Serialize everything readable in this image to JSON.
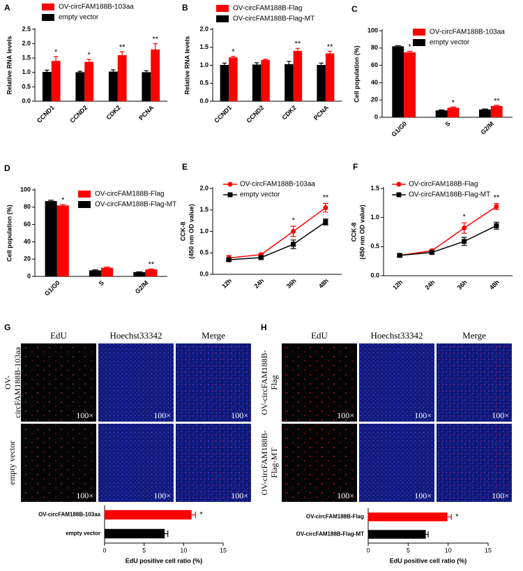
{
  "chart_data": [
    {
      "type": "bar",
      "panel": "A",
      "ylabel": "Relative RNA levels",
      "categories": [
        "CCND1",
        "CCND2",
        "CDK2",
        "PCNA"
      ],
      "series": [
        {
          "name": "OV-circFAM188B-103aa",
          "color": "#ff0000",
          "values": [
            1.4,
            1.37,
            1.6,
            1.8
          ],
          "errors": [
            0.15,
            0.08,
            0.12,
            0.2
          ],
          "annotations": [
            "*",
            "*",
            "**",
            "**"
          ]
        },
        {
          "name": "empty vector",
          "color": "#000000",
          "values": [
            1.02,
            1.01,
            1.03,
            1.01
          ],
          "errors": [
            0.06,
            0.03,
            0.06,
            0.05
          ]
        }
      ],
      "ylim": [
        0,
        2.5
      ],
      "yticks": [
        {
          "value": 0,
          "label": "0.0"
        },
        0.5,
        {
          "value": 1,
          "label": "1.0"
        },
        1.5,
        {
          "value": 2,
          "label": "2.0"
        },
        2.5
      ]
    },
    {
      "type": "bar",
      "panel": "B",
      "ylabel": "Relative RNA levels",
      "categories": [
        "CCND1",
        "CCND2",
        "CDK2",
        "PCNA"
      ],
      "series": [
        {
          "name": "OV-circFAM188B-Flag",
          "color": "#ff0000",
          "values": [
            1.22,
            1.15,
            1.4,
            1.33
          ],
          "errors": [
            0.03,
            0.02,
            0.07,
            0.06
          ],
          "annotations": [
            "*",
            null,
            "**",
            "**"
          ]
        },
        {
          "name": "OV-circFAM188B-Flag-MT",
          "color": "#000000",
          "values": [
            1.01,
            1.02,
            1.03,
            1.01
          ],
          "errors": [
            0.05,
            0.05,
            0.08,
            0.05
          ]
        }
      ],
      "ylim": [
        0,
        2.0
      ],
      "yticks": [
        {
          "value": 0,
          "label": "0.0"
        },
        0.5,
        {
          "value": 1,
          "label": "1.0"
        },
        1.5,
        {
          "value": 2,
          "label": "2.0"
        }
      ]
    },
    {
      "type": "bar",
      "panel": "C",
      "ylabel": "Cell population (%)",
      "categories": [
        "G1/G0",
        "S",
        "G2/M"
      ],
      "series": [
        {
          "name": "OV-circFAM188B-103aa",
          "color": "#ff0000",
          "values": [
            75,
            11,
            13
          ],
          "errors": [
            1.2,
            0.8,
            0.8
          ],
          "annotations": [
            "*",
            "*",
            "**"
          ]
        },
        {
          "name": "empty vector",
          "color": "#000000",
          "values": [
            82,
            8,
            9
          ],
          "errors": [
            0.8,
            0.5,
            0.6
          ]
        }
      ],
      "ylim": [
        0,
        100
      ],
      "yticks": [
        0,
        20,
        40,
        60,
        80,
        100
      ]
    },
    {
      "type": "bar",
      "panel": "D",
      "ylabel": "Cell population (%)",
      "categories": [
        "G1/G0",
        "S",
        "G2/M"
      ],
      "series": [
        {
          "name": "OV-circFAM188B-Flag",
          "color": "#ff0000",
          "values": [
            82,
            10,
            8
          ],
          "errors": [
            1.0,
            0.8,
            0.6
          ],
          "annotations": [
            "*",
            null,
            "**"
          ]
        },
        {
          "name": "OV-circFAM188B-Flag-MT",
          "color": "#000000",
          "values": [
            87,
            7,
            5
          ],
          "errors": [
            1.0,
            0.6,
            0.4
          ]
        }
      ],
      "ylim": [
        0,
        100
      ],
      "yticks": [
        0,
        20,
        40,
        60,
        80,
        100
      ]
    },
    {
      "type": "line",
      "panel": "E",
      "ylabel": [
        "CCK-8",
        "(450 nm OD value)"
      ],
      "categories": [
        "12h",
        "24h",
        "36h",
        "48h"
      ],
      "series": [
        {
          "name": "OV-circFAM188B-103aa",
          "color": "#ff0000",
          "marker": "circle",
          "values": [
            0.38,
            0.46,
            1.0,
            1.55
          ],
          "errors": [
            0.06,
            0.02,
            0.12,
            0.1
          ],
          "annotations": [
            null,
            null,
            "*",
            "**"
          ]
        },
        {
          "name": "empty vector",
          "color": "#000000",
          "marker": "square",
          "values": [
            0.34,
            0.39,
            0.7,
            1.22
          ],
          "errors": [
            0.03,
            0.03,
            0.1,
            0.07
          ]
        }
      ],
      "ylim": [
        0,
        2.0
      ],
      "yticks": [
        {
          "value": 0,
          "label": "0.0"
        },
        0.5,
        {
          "value": 1,
          "label": "1.0"
        },
        1.5,
        {
          "value": 2,
          "label": "2.0"
        }
      ]
    },
    {
      "type": "line",
      "panel": "F",
      "ylabel": [
        "CCK-8",
        "(450 nm OD value)"
      ],
      "categories": [
        "12h",
        "24h",
        "36h",
        "48h"
      ],
      "series": [
        {
          "name": "OV-circFAM188B-Flag",
          "color": "#ff0000",
          "marker": "circle",
          "values": [
            0.35,
            0.43,
            0.82,
            1.19
          ],
          "errors": [
            0.02,
            0.02,
            0.09,
            0.05
          ],
          "annotations": [
            null,
            null,
            "*",
            "**"
          ]
        },
        {
          "name": "OV-circFAM188B-Flag-MT",
          "color": "#000000",
          "marker": "square",
          "values": [
            0.35,
            0.4,
            0.59,
            0.86
          ],
          "errors": [
            0.02,
            0.02,
            0.07,
            0.06
          ]
        }
      ],
      "ylim": [
        0,
        1.5
      ],
      "yticks": [
        {
          "value": 0,
          "label": "0.0"
        },
        0.5,
        {
          "value": 1,
          "label": "1.0"
        },
        1.5
      ]
    },
    {
      "type": "hbar",
      "categories": [
        "OV-circFAM188B-103aa",
        "empty vector"
      ],
      "values": [
        11,
        7.6
      ],
      "errors": [
        0.5,
        0.4
      ],
      "colors": [
        "#ff0000",
        "#000000"
      ],
      "annotations": [
        "*",
        null
      ],
      "xlabel": "EdU positive cell ratio (%)",
      "xlim": [
        0,
        15
      ],
      "xticks": [
        0,
        5,
        10,
        15
      ]
    },
    {
      "type": "hbar",
      "categories": [
        "OV-circFAM188B-Flag",
        "OV-circFAM188B-Flag-MT"
      ],
      "values": [
        9.9,
        7.2
      ],
      "errors": [
        0.5,
        0.3
      ],
      "colors": [
        "#ff0000",
        "#000000"
      ],
      "annotations": [
        "*",
        null
      ],
      "xlabel": "EdU positive cell ratio (%)",
      "xlim": [
        0,
        15
      ],
      "xticks": [
        0,
        5,
        10,
        15
      ]
    }
  ],
  "image_panels": [
    {
      "panel": "G",
      "columns": [
        "EdU",
        "Hoechst33342",
        "Merge"
      ],
      "rows": [
        [
          "OV-",
          "circFAM188B-103aa"
        ],
        [
          "empty vector"
        ]
      ],
      "magnification": "100×"
    },
    {
      "panel": "H",
      "columns": [
        "EdU",
        "Hoechst33342",
        "Merge"
      ],
      "rows": [
        [
          "OV-circFAM188B-",
          "Flag"
        ],
        [
          "OV-circFAM188B-",
          "Flag-MT"
        ]
      ],
      "magnification": "100×"
    }
  ]
}
